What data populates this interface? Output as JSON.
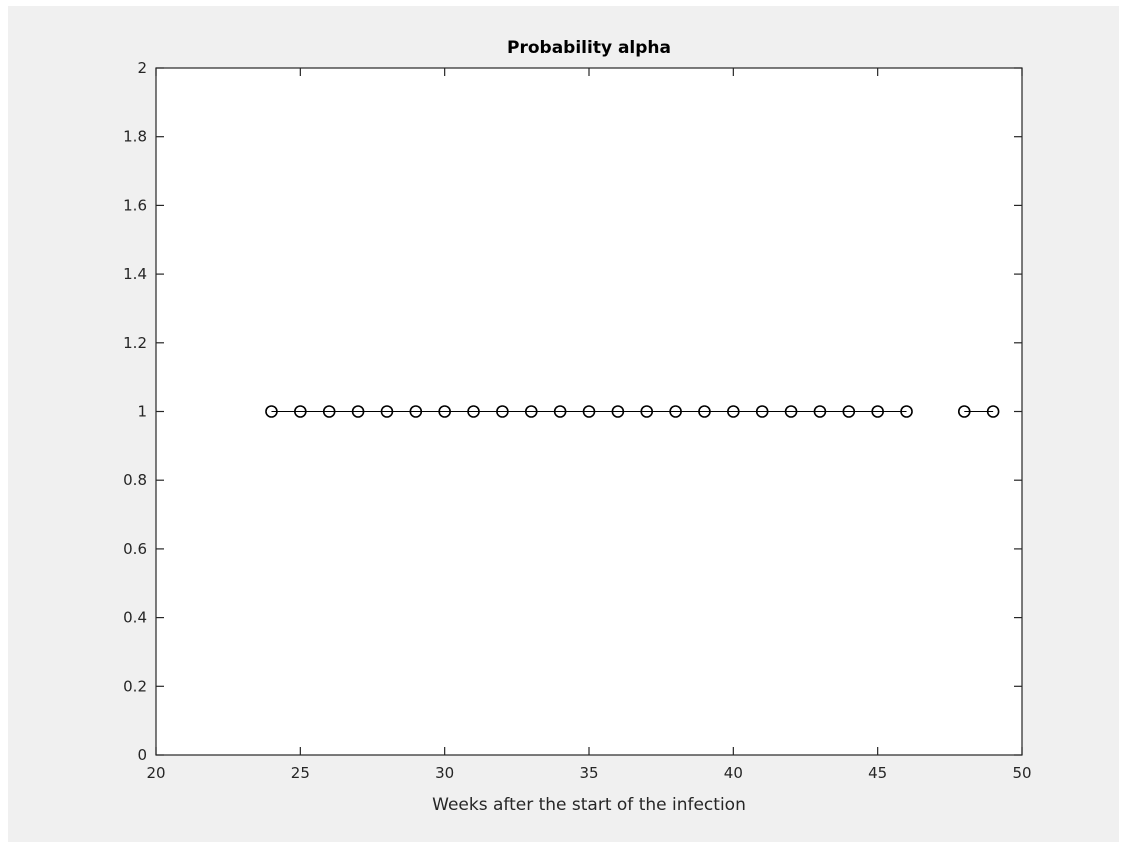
{
  "figure": {
    "background_color": "#f0f0f0",
    "axes_color": "#ffffff",
    "axis_line_color": "#262626",
    "series_color": "#000000"
  },
  "chart_data": {
    "type": "line",
    "title": "Probability alpha",
    "xlabel": "Weeks after the start of the infection",
    "ylabel": "",
    "xlim": [
      20,
      50
    ],
    "ylim": [
      0,
      2
    ],
    "xticks": [
      20,
      25,
      30,
      35,
      40,
      45,
      50
    ],
    "xtick_labels": [
      "20",
      "25",
      "30",
      "35",
      "40",
      "45",
      "50"
    ],
    "yticks": [
      0,
      0.2,
      0.4,
      0.6,
      0.8,
      1,
      1.2,
      1.4,
      1.6,
      1.8,
      2
    ],
    "ytick_labels": [
      "0",
      "0.2",
      "0.4",
      "0.6",
      "0.8",
      "1",
      "1.2",
      "1.4",
      "1.6",
      "1.8",
      "2"
    ],
    "grid": false,
    "marker": "circle-open",
    "series": [
      {
        "segments": [
          {
            "x": [
              24,
              25,
              26,
              27,
              28,
              29,
              30,
              31,
              32,
              33,
              34,
              35,
              36,
              37,
              38,
              39,
              40,
              41,
              42,
              43,
              44,
              45,
              46
            ],
            "y": [
              1,
              1,
              1,
              1,
              1,
              1,
              1,
              1,
              1,
              1,
              1,
              1,
              1,
              1,
              1,
              1,
              1,
              1,
              1,
              1,
              1,
              1,
              1
            ]
          },
          {
            "x": [
              48,
              49
            ],
            "y": [
              1,
              1
            ]
          }
        ]
      }
    ]
  }
}
